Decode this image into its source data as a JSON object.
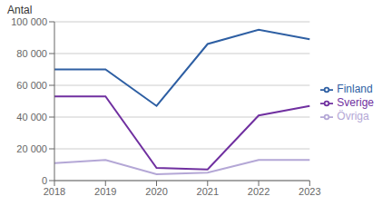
{
  "chart_data": {
    "type": "line",
    "ylabel": "Antal",
    "categories": [
      "2018",
      "2019",
      "2020",
      "2021",
      "2022",
      "2023"
    ],
    "series": [
      {
        "name": "Finland",
        "color": "#2e5fa3",
        "values": [
          70000,
          70000,
          47000,
          86000,
          95000,
          89000
        ]
      },
      {
        "name": "Sverige",
        "color": "#7030a0",
        "values": [
          53000,
          53000,
          8000,
          7000,
          41000,
          47000
        ]
      },
      {
        "name": "Övriga",
        "color": "#b4a7d6",
        "values": [
          11000,
          13000,
          4000,
          5000,
          13000,
          13000
        ]
      }
    ],
    "ylim": [
      0,
      100000
    ],
    "yticks": [
      0,
      {
        "value": 20000,
        "label": "20 000"
      },
      {
        "value": 40000,
        "label": "40 000"
      },
      {
        "value": 60000,
        "label": "60 000"
      },
      {
        "value": 80000,
        "label": "80 000"
      },
      {
        "value": 100000,
        "label": "100 000"
      }
    ],
    "grid": "y",
    "legend": "right"
  }
}
